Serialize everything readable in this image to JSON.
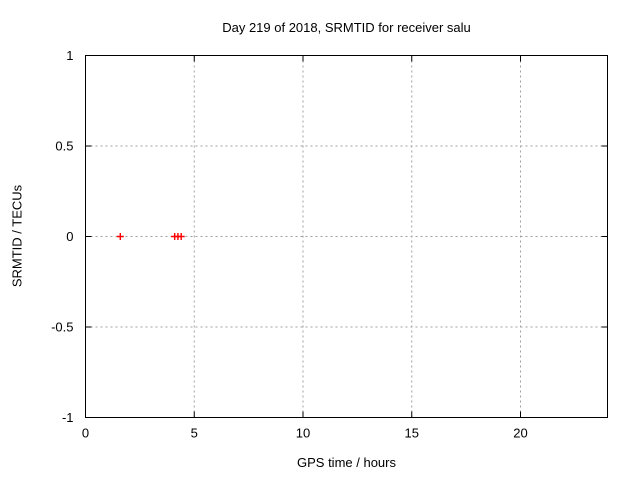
{
  "window": {
    "background": "#ffffff"
  },
  "chart_data": {
    "type": "scatter",
    "title": "Day 219 of 2018, SRMTID for receiver salu",
    "xlabel": "GPS time / hours",
    "ylabel": "SRMTID / TECUs",
    "xlim": [
      0,
      24
    ],
    "ylim": [
      -1,
      1
    ],
    "x_ticks": [
      0,
      5,
      10,
      15,
      20
    ],
    "x_tick_labels": [
      "0",
      "5",
      "10",
      "15",
      "20"
    ],
    "y_ticks": [
      -1,
      -0.5,
      0,
      0.5,
      1
    ],
    "y_tick_labels": [
      "-1",
      "-0.5",
      "0",
      "0.5",
      "1"
    ],
    "grid": true,
    "legend": "none",
    "series": [
      {
        "name": "SRMTID",
        "marker": "plus",
        "color": "#ff0000",
        "points": [
          {
            "x": 1.6,
            "y": 0
          },
          {
            "x": 4.1,
            "y": 0
          },
          {
            "x": 4.25,
            "y": 0
          },
          {
            "x": 4.4,
            "y": 0
          }
        ]
      }
    ],
    "colors": {
      "frame": "#000000",
      "grid": "#a0a0a0",
      "text": "#000000",
      "marker": "#ff0000",
      "background": "#ffffff"
    }
  }
}
